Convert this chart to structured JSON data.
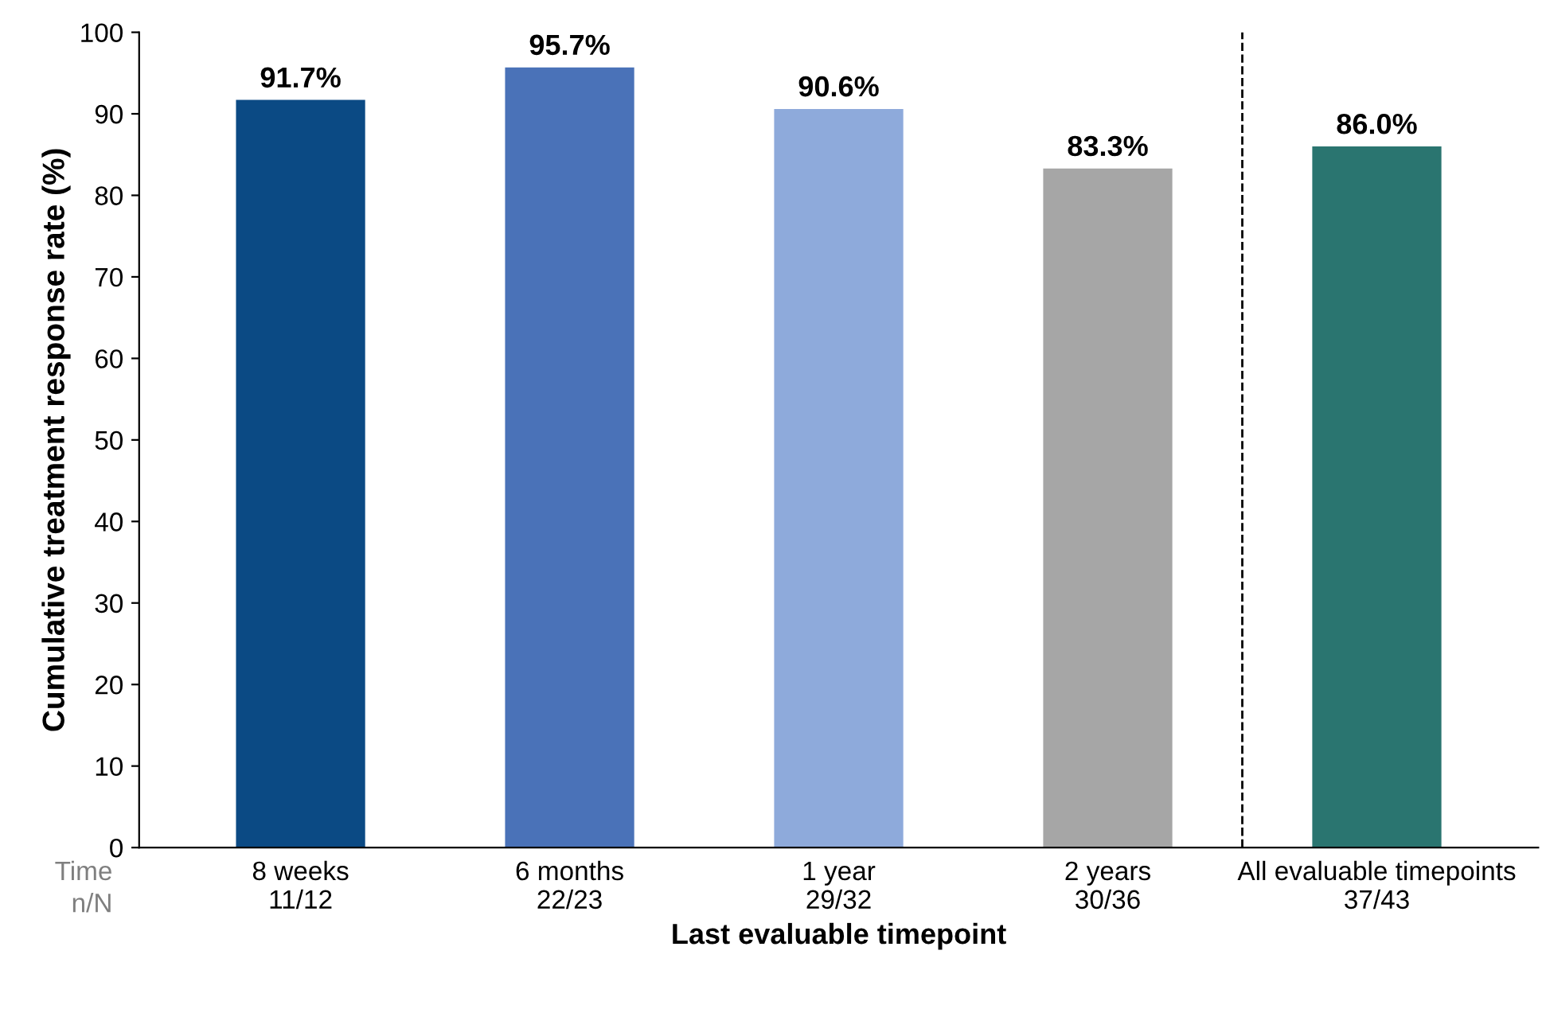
{
  "chart_data": {
    "type": "bar",
    "categories": [
      "8 weeks\n11/12",
      "6 months\n22/23",
      "1 year\n29/32",
      "2 years\n30/36",
      "All evaluable timepoints\n37/43"
    ],
    "values": [
      91.7,
      95.7,
      90.6,
      83.3,
      86.0
    ],
    "colors": [
      "#0b4a84",
      "#4a72b8",
      "#8eaadb",
      "#a6a6a6",
      "#2a7570"
    ],
    "value_labels": [
      "91.7%",
      "95.7%",
      "90.6%",
      "83.3%",
      "86.0%"
    ],
    "xlabel": "Last evaluable timepoint",
    "ylabel": "Cumulative treatment response rate (%)",
    "ylim": [
      0,
      100
    ],
    "yticks": [
      0,
      10,
      20,
      30,
      40,
      50,
      60,
      70,
      80,
      90,
      100
    ],
    "annotations": [
      "Time",
      "n/N"
    ],
    "grid": false,
    "legend": false
  }
}
